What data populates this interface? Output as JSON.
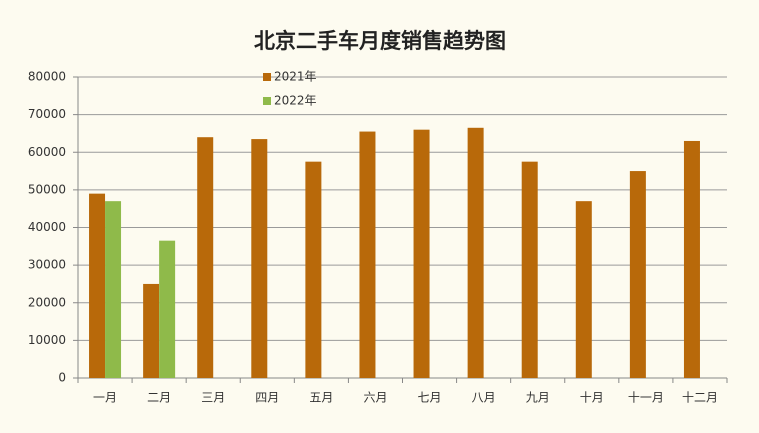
{
  "chart_data": {
    "type": "bar",
    "title": "北京二手车月度销售趋势图",
    "categories": [
      "一月",
      "二月",
      "三月",
      "四月",
      "五月",
      "六月",
      "七月",
      "八月",
      "九月",
      "十月",
      "十一月",
      "十二月"
    ],
    "series": [
      {
        "name": "2021年",
        "color": "#b8690a",
        "values": [
          49000,
          25000,
          64000,
          63500,
          57500,
          65500,
          66000,
          66500,
          57500,
          47000,
          55000,
          63000
        ]
      },
      {
        "name": "2022年",
        "color": "#8fba4a",
        "values": [
          47000,
          36500,
          null,
          null,
          null,
          null,
          null,
          null,
          null,
          null,
          null,
          null
        ]
      }
    ],
    "ylim": [
      0,
      80000
    ],
    "yticks": [
      0,
      10000,
      20000,
      30000,
      40000,
      50000,
      60000,
      70000,
      80000
    ],
    "grid": true,
    "legend": "top-left"
  }
}
